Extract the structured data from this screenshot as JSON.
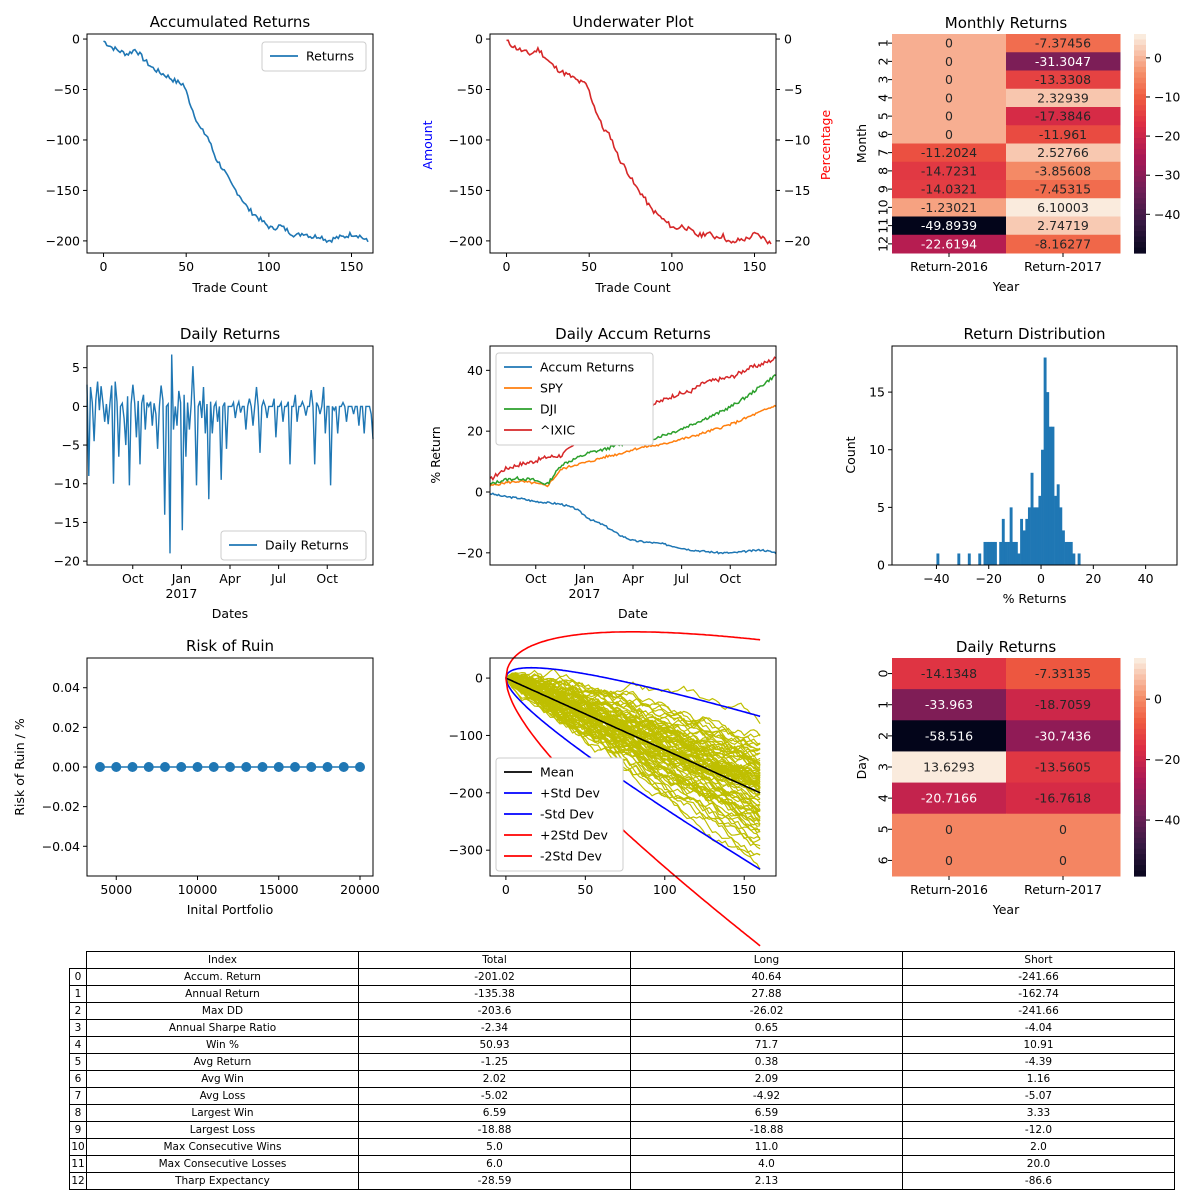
{
  "colors": {
    "c0": "#1f77b4",
    "c1": "#ff7f0e",
    "c2": "#2ca02c",
    "c3": "#d62728",
    "sim": "#bfbf00",
    "mean": "#000000",
    "std": "#0000ff",
    "std2": "#ff0000",
    "amount_label": "#0000ff",
    "percent_label": "#ff0000"
  },
  "chart_data": [
    {
      "id": "accum",
      "type": "line",
      "title": "Accumulated Returns",
      "xlabel": "Trade Count",
      "ylabel": "",
      "xlim": [
        -10,
        163
      ],
      "ylim": [
        -212,
        5
      ],
      "xticks": [
        0,
        50,
        100,
        150
      ],
      "yticks": [
        0,
        -50,
        -100,
        -150,
        -200
      ],
      "legend": "top-right",
      "series": [
        {
          "name": "Returns",
          "x": [
            0,
            2,
            5,
            10,
            15,
            20,
            25,
            30,
            35,
            40,
            45,
            50,
            55,
            60,
            65,
            70,
            75,
            80,
            85,
            90,
            95,
            100,
            105,
            110,
            115,
            120,
            125,
            130,
            135,
            140,
            145,
            150,
            155,
            160
          ],
          "y": [
            -2,
            -8,
            -12,
            -15,
            -10,
            -20,
            -28,
            -33,
            -37,
            -42,
            -45,
            -68,
            -88,
            -97,
            -118,
            -130,
            -145,
            -155,
            -168,
            -175,
            -182,
            -188,
            -185,
            -190,
            -195,
            -192,
            -196,
            -195,
            -200,
            -197,
            -196,
            -193,
            -195,
            -201
          ]
        }
      ]
    },
    {
      "id": "underwater",
      "type": "line",
      "title": "Underwater Plot",
      "xlabel": "Trade Count",
      "ylabel": "Amount",
      "ylabel2": "Percentage",
      "xlim": [
        -10,
        163
      ],
      "ylim": [
        -212,
        5
      ],
      "ylim2": [
        -21.2,
        0.5
      ],
      "xticks": [
        0,
        50,
        100,
        150
      ],
      "yticks": [
        0,
        -50,
        -100,
        -150,
        -200
      ],
      "yticks2": [
        0,
        -5,
        -10,
        -15,
        -20
      ],
      "series": [
        {
          "x": [
            0,
            2,
            5,
            10,
            15,
            20,
            25,
            30,
            35,
            40,
            45,
            50,
            55,
            60,
            65,
            70,
            75,
            80,
            85,
            90,
            95,
            100,
            105,
            110,
            115,
            120,
            125,
            130,
            135,
            140,
            145,
            150,
            155,
            160
          ],
          "y": [
            -2,
            -8,
            -12,
            -15,
            -10,
            -20,
            -28,
            -33,
            -37,
            -42,
            -45,
            -68,
            -88,
            -97,
            -118,
            -130,
            -145,
            -155,
            -168,
            -175,
            -182,
            -188,
            -185,
            -190,
            -195,
            -192,
            -196,
            -195,
            -203,
            -199,
            -198,
            -193,
            -197,
            -203
          ]
        }
      ]
    },
    {
      "id": "monthly",
      "type": "heatmap",
      "title": "Monthly Returns",
      "xlabel": "Year",
      "ylabel": "Month",
      "columns": [
        "Return-2016",
        "Return-2017"
      ],
      "rows": [
        "1",
        "2",
        "3",
        "4",
        "5",
        "6",
        "7",
        "8",
        "9",
        "10",
        "11",
        "12"
      ],
      "values": [
        [
          0,
          -7.37456
        ],
        [
          0,
          -31.3047
        ],
        [
          0,
          -13.3308
        ],
        [
          0,
          2.32939
        ],
        [
          0,
          -17.3846
        ],
        [
          0,
          -11.961
        ],
        [
          -11.2024,
          2.52766
        ],
        [
          -14.7231,
          -3.85608
        ],
        [
          -14.0321,
          -7.45315
        ],
        [
          -1.23021,
          6.10003
        ],
        [
          -49.8939,
          2.74719
        ],
        [
          -22.6194,
          -8.16277
        ]
      ],
      "labels": [
        [
          "0",
          "-7.37456"
        ],
        [
          "0",
          "-31.3047"
        ],
        [
          "0",
          "-13.3308"
        ],
        [
          "0",
          "2.32939"
        ],
        [
          "0",
          "-17.3846"
        ],
        [
          "0",
          "-11.961"
        ],
        [
          "-11.2024",
          "2.52766"
        ],
        [
          "-14.7231",
          "-3.85608"
        ],
        [
          "-14.0321",
          "-7.45315"
        ],
        [
          "-1.23021",
          "6.10003"
        ],
        [
          "-49.8939",
          "2.74719"
        ],
        [
          "-22.6194",
          "-8.16277"
        ]
      ],
      "vmin": -49.8939,
      "vmax": 6.10003,
      "colorbar_ticks": [
        0,
        -10,
        -20,
        -30,
        -40
      ],
      "colorbar_labels": [
        "0",
        "−10",
        "−20",
        "−30",
        "−40"
      ]
    },
    {
      "id": "daily",
      "type": "line",
      "title": "Daily Returns",
      "xlabel": "Dates",
      "ylabel": "",
      "ylim": [
        -20.5,
        7.8
      ],
      "yticks": [
        5,
        0,
        -5,
        -10,
        -15,
        -20
      ],
      "xticklabels": [
        "Oct",
        "Jan\n2017",
        "Apr",
        "Jul",
        "Oct"
      ],
      "legend": "bottom-right",
      "series": [
        {
          "name": "Daily Returns",
          "values": [
            2.8,
            -9.0,
            2.5,
            0.5,
            -4.5,
            0.8,
            3.2,
            -0.5,
            2.6,
            0.5,
            -2.0,
            0.3,
            -2.3,
            0.5,
            2.7,
            -10.0,
            3.2,
            0.6,
            -6.5,
            0,
            0.4,
            -1.6,
            -5.0,
            1.3,
            -10.2,
            0.3,
            2.8,
            0.4,
            -4.0,
            0.7,
            -7.5,
            0.4,
            1.5,
            -3.0,
            0.5,
            0,
            0.6,
            -2.5,
            0.4,
            -1.0,
            -5.5,
            0,
            2.7,
            0.8,
            -14.0,
            0,
            0.3,
            -19.0,
            6.7,
            -3.0,
            0,
            -2.5,
            2.0,
            0.5,
            -16.0,
            1.5,
            -6.5,
            0.5,
            -3.0,
            0.3,
            5.2,
            0,
            -10.2,
            0,
            0.7,
            -1.5,
            2.5,
            -3.5,
            0.3,
            -12.0,
            0.6,
            -3.5,
            0,
            0.5,
            -2.0,
            0,
            -9.5,
            0,
            0.5,
            -5.5,
            0,
            0,
            0,
            0.5,
            -1.5,
            0,
            0.6,
            -0.8,
            0,
            0,
            -3.0,
            0,
            1.0,
            0,
            -2.5,
            0,
            2.5,
            0,
            -6.0,
            0,
            0.7,
            0,
            -1.5,
            0,
            0,
            0,
            1.0,
            -4.0,
            0,
            0,
            0.5,
            -2.0,
            0,
            0,
            0.6,
            -7.5,
            0,
            0,
            1.5,
            -2.0,
            0,
            0,
            0.6,
            0,
            -1.2,
            0,
            0,
            2.1,
            0,
            -7.5,
            0.5,
            0,
            -1.0,
            0,
            2.5,
            -3.5,
            0,
            0,
            -10.2,
            0,
            -0.5,
            0,
            -3.5,
            0,
            0,
            0.5,
            0,
            -2.0,
            0,
            0,
            0,
            -1.0,
            0,
            0,
            -2.5,
            0,
            0,
            -3.5,
            0,
            0,
            0,
            -1.0,
            -4.2
          ]
        }
      ]
    },
    {
      "id": "daily_accum",
      "type": "line",
      "title": "Daily Accum Returns",
      "xlabel": "Date",
      "ylabel": "% Return",
      "ylim": [
        -24,
        48
      ],
      "yticks": [
        40,
        20,
        0,
        -20
      ],
      "xticklabels": [
        "Oct",
        "Jan\n2017",
        "Apr",
        "Jul",
        "Oct"
      ],
      "legend": "top-left",
      "x": [
        0,
        0.05,
        0.1,
        0.15,
        0.2,
        0.25,
        0.3,
        0.35,
        0.4,
        0.45,
        0.5,
        0.55,
        0.6,
        0.65,
        0.7,
        0.75,
        0.8,
        0.85,
        0.9,
        0.95,
        1.0
      ],
      "series": [
        {
          "name": "Accum Returns",
          "values": [
            -0.5,
            -1.5,
            -2.0,
            -3.0,
            -3.5,
            -4.0,
            -5.5,
            -9.0,
            -11.0,
            -14.0,
            -16.0,
            -16.5,
            -17.0,
            -18.0,
            -19.0,
            -19.5,
            -20.0,
            -20.0,
            -19.5,
            -19.0,
            -20.0
          ]
        },
        {
          "name": "SPY",
          "values": [
            2.0,
            3.0,
            3.5,
            3.0,
            2.0,
            7.5,
            9.0,
            10.0,
            11.5,
            12.5,
            14.0,
            15.0,
            15.5,
            17.0,
            18.0,
            19.5,
            21.0,
            22.5,
            24.5,
            26.5,
            28.5
          ]
        },
        {
          "name": "DJI",
          "values": [
            2.5,
            4.0,
            4.5,
            4.0,
            2.5,
            9.0,
            11.0,
            13.0,
            14.0,
            15.5,
            16.5,
            17.0,
            18.5,
            20.0,
            22.0,
            24.0,
            26.0,
            28.5,
            31.5,
            35.0,
            38.5
          ]
        },
        {
          "name": "^IXIC",
          "values": [
            4.0,
            7.5,
            9.0,
            10.0,
            11.5,
            12.0,
            16.0,
            18.0,
            20.0,
            21.0,
            25.0,
            28.0,
            30.0,
            32.0,
            33.0,
            36.0,
            37.0,
            38.0,
            40.5,
            42.0,
            44.0
          ]
        }
      ]
    },
    {
      "id": "dist",
      "type": "bar",
      "title": "Return Distribution",
      "xlabel": "% Returns",
      "ylabel": "Count",
      "xlim": [
        -57,
        52
      ],
      "ylim": [
        0,
        19
      ],
      "xticks": [
        -40,
        -20,
        0,
        20,
        40
      ],
      "yticks": [
        0,
        5,
        10,
        15
      ],
      "bins": [
        [
          -40,
          1
        ],
        [
          -32,
          1
        ],
        [
          -28,
          1
        ],
        [
          -24,
          1
        ],
        [
          -22,
          2
        ],
        [
          -21,
          2
        ],
        [
          -20,
          2
        ],
        [
          -19,
          2
        ],
        [
          -18,
          2
        ],
        [
          -16,
          2
        ],
        [
          -15,
          4
        ],
        [
          -14,
          2
        ],
        [
          -13,
          2
        ],
        [
          -12,
          5
        ],
        [
          -11,
          2
        ],
        [
          -10,
          2
        ],
        [
          -9,
          1
        ],
        [
          -8,
          4
        ],
        [
          -7,
          3
        ],
        [
          -6,
          4
        ],
        [
          -5,
          5
        ],
        [
          -4,
          8
        ],
        [
          -3,
          5
        ],
        [
          -2,
          5
        ],
        [
          -1,
          6
        ],
        [
          0,
          10
        ],
        [
          1,
          18
        ],
        [
          2,
          15
        ],
        [
          3,
          12
        ],
        [
          4,
          12
        ],
        [
          5,
          6
        ],
        [
          6,
          7
        ],
        [
          7,
          5
        ],
        [
          8,
          3
        ],
        [
          9,
          2
        ],
        [
          10,
          2
        ],
        [
          11,
          2
        ],
        [
          12,
          1
        ],
        [
          14,
          1
        ]
      ]
    },
    {
      "id": "ruin",
      "type": "scatter",
      "title": "Risk of Ruin",
      "xlabel": "Inital Portfolio",
      "ylabel": "Risk of Ruin / %",
      "xlim": [
        3200,
        20800
      ],
      "ylim": [
        -0.055,
        0.055
      ],
      "xticks": [
        5000,
        10000,
        15000,
        20000
      ],
      "yticks": [
        0.04,
        0.02,
        0.0,
        -0.02,
        -0.04
      ],
      "ytick_labels": [
        "0.04",
        "0.02",
        "0.00",
        "−0.02",
        "−0.04"
      ],
      "x": [
        4000,
        5000,
        6000,
        7000,
        8000,
        9000,
        10000,
        11000,
        12000,
        13000,
        14000,
        15000,
        16000,
        17000,
        18000,
        19000,
        20000
      ],
      "y": [
        0,
        0,
        0,
        0,
        0,
        0,
        0,
        0,
        0,
        0,
        0,
        0,
        0,
        0,
        0,
        0,
        0
      ]
    },
    {
      "id": "montecarlo",
      "type": "line",
      "title": "",
      "xlim": [
        -10,
        170
      ],
      "ylim": [
        -345,
        35
      ],
      "xticks": [
        0,
        50,
        100,
        150
      ],
      "yticks": [
        0,
        -100,
        -200,
        -300
      ],
      "legend": "bottom-left",
      "n_steps": 160,
      "series": [
        {
          "name": "Mean",
          "slope": -1.25
        },
        {
          "name": "+Std Dev",
          "slope": -1.25,
          "k": 1
        },
        {
          "name": "-Std Dev",
          "slope": -1.25,
          "k": -1
        },
        {
          "name": "+2Std Dev",
          "slope": -1.25,
          "k": 2
        },
        {
          "name": "-2Std Dev",
          "slope": -1.25,
          "k": -2
        }
      ]
    },
    {
      "id": "dailyheat",
      "type": "heatmap",
      "title": "Daily Returns",
      "xlabel": "Year",
      "ylabel": "Day",
      "columns": [
        "Return-2016",
        "Return-2017"
      ],
      "rows": [
        "0",
        "1",
        "2",
        "3",
        "4",
        "5",
        "6"
      ],
      "values": [
        [
          -14.1348,
          -7.33135
        ],
        [
          -33.963,
          -18.7059
        ],
        [
          -58.516,
          -30.7436
        ],
        [
          13.6293,
          -13.5605
        ],
        [
          -20.7166,
          -16.7618
        ],
        [
          0,
          0
        ],
        [
          0,
          0
        ]
      ],
      "labels": [
        [
          "-14.1348",
          "-7.33135"
        ],
        [
          "-33.963",
          "-18.7059"
        ],
        [
          "-58.516",
          "-30.7436"
        ],
        [
          "13.6293",
          "-13.5605"
        ],
        [
          "-20.7166",
          "-16.7618"
        ],
        [
          "0",
          "0"
        ],
        [
          "0",
          "0"
        ]
      ],
      "vmin": -58.516,
      "vmax": 13.6293,
      "colorbar_ticks": [
        0,
        -20,
        -40
      ],
      "colorbar_labels": [
        "0",
        "−20",
        "−40"
      ]
    }
  ],
  "table": {
    "columns": [
      "Index",
      "Total",
      "Long",
      "Short"
    ],
    "rows": [
      [
        "0",
        "Accum. Return",
        "-201.02",
        "40.64",
        "-241.66"
      ],
      [
        "1",
        "Annual Return",
        "-135.38",
        "27.88",
        "-162.74"
      ],
      [
        "2",
        "Max DD",
        "-203.6",
        "-26.02",
        "-241.66"
      ],
      [
        "3",
        "Annual Sharpe Ratio",
        "-2.34",
        "0.65",
        "-4.04"
      ],
      [
        "4",
        "Win %",
        "50.93",
        "71.7",
        "10.91"
      ],
      [
        "5",
        "Avg Return",
        "-1.25",
        "0.38",
        "-4.39"
      ],
      [
        "6",
        "Avg Win",
        "2.02",
        "2.09",
        "1.16"
      ],
      [
        "7",
        "Avg Loss",
        "-5.02",
        "-4.92",
        "-5.07"
      ],
      [
        "8",
        "Largest Win",
        "6.59",
        "6.59",
        "3.33"
      ],
      [
        "9",
        "Largest Loss",
        "-18.88",
        "-18.88",
        "-12.0"
      ],
      [
        "10",
        "Max Consecutive Wins",
        "5.0",
        "11.0",
        "2.0"
      ],
      [
        "11",
        "Max Consecutive Losses",
        "6.0",
        "4.0",
        "20.0"
      ],
      [
        "12",
        "Tharp Expectancy",
        "-28.59",
        "2.13",
        "-86.6"
      ]
    ]
  }
}
